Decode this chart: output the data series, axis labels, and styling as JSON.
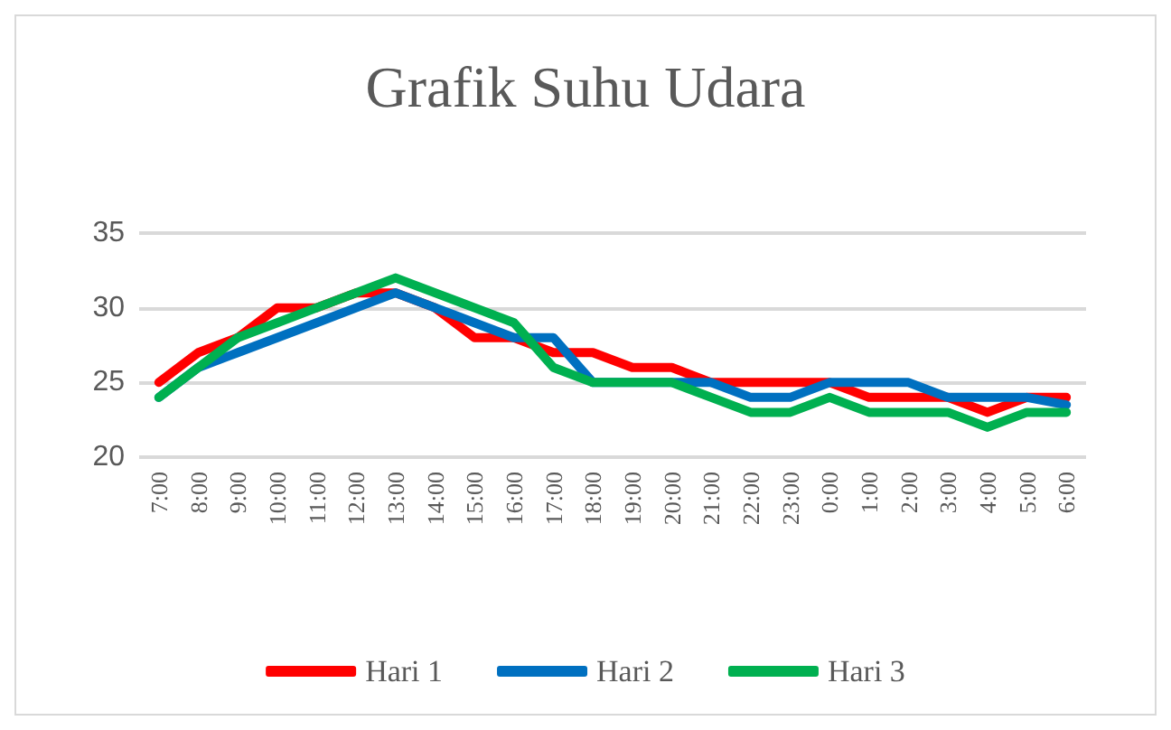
{
  "chart_data": {
    "type": "line",
    "title": "Grafik Suhu Udara",
    "categories": [
      "7:00",
      "8:00",
      "9:00",
      "10:00",
      "11:00",
      "12:00",
      "13:00",
      "14:00",
      "15:00",
      "16:00",
      "17:00",
      "18:00",
      "19:00",
      "20:00",
      "21:00",
      "22:00",
      "23:00",
      "0:00",
      "1:00",
      "2:00",
      "3:00",
      "4:00",
      "5:00",
      "6:00"
    ],
    "series": [
      {
        "name": "Hari 1",
        "color": "#ff0000",
        "values": [
          25,
          27,
          28,
          30,
          30,
          31,
          31,
          30,
          28,
          28,
          27,
          27,
          26,
          26,
          25,
          25,
          25,
          25,
          24,
          24,
          24,
          23,
          24,
          24
        ]
      },
      {
        "name": "Hari 2",
        "color": "#0070c0",
        "values": [
          24,
          26,
          27,
          28,
          29,
          30,
          31,
          30,
          29,
          28,
          28,
          25,
          25,
          25,
          25,
          24,
          24,
          25,
          25,
          25,
          24,
          24,
          24,
          23.5
        ]
      },
      {
        "name": "Hari 3",
        "color": "#00b050",
        "values": [
          24,
          26,
          28,
          29,
          30,
          31,
          32,
          31,
          30,
          29,
          26,
          25,
          25,
          25,
          24,
          23,
          23,
          24,
          23,
          23,
          23,
          22,
          23,
          23
        ]
      }
    ],
    "ylim": [
      20,
      35
    ],
    "yticks": [
      20,
      25,
      30,
      35
    ],
    "grid": "y",
    "legend": "bottom",
    "marker": "none",
    "line_style": "solid"
  }
}
